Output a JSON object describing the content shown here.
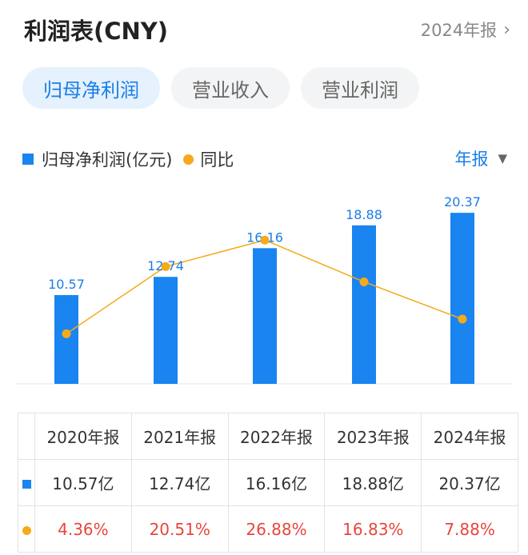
{
  "header": {
    "title": "利润表(CNY)",
    "period": "2024年报"
  },
  "tabs": [
    {
      "label": "归母净利润",
      "active": true
    },
    {
      "label": "营业收入",
      "active": false
    },
    {
      "label": "营业利润",
      "active": false
    }
  ],
  "legend": {
    "bar_label": "归母净利润(亿元)",
    "line_label": "同比"
  },
  "period_select": {
    "label": "年报"
  },
  "chart_data": {
    "type": "bar",
    "categories": [
      "2020年报",
      "2021年报",
      "2022年报",
      "2023年报",
      "2024年报"
    ],
    "series": [
      {
        "name": "归母净利润(亿元)",
        "type": "bar",
        "values": [
          10.57,
          12.74,
          16.16,
          18.88,
          20.37
        ],
        "color": "#1a84f0"
      },
      {
        "name": "同比",
        "type": "line",
        "values": [
          4.36,
          20.51,
          26.88,
          16.83,
          7.88
        ],
        "color": "#f5aa1c"
      }
    ],
    "bar_labels": [
      "10.57",
      "12.74",
      "16.16",
      "18.88",
      "20.37"
    ]
  },
  "table": {
    "headers": [
      "2020年报",
      "2021年报",
      "2022年报",
      "2023年报",
      "2024年报"
    ],
    "row_values": [
      "10.57亿",
      "12.74亿",
      "16.16亿",
      "18.88亿",
      "20.37亿"
    ],
    "row_yoy": [
      "4.36%",
      "20.51%",
      "26.88%",
      "16.83%",
      "7.88%"
    ]
  },
  "colors": {
    "accent": "#1a7ee8",
    "bar": "#1a84f0",
    "line": "#f5aa1c",
    "negative_red": "#e8463c"
  }
}
